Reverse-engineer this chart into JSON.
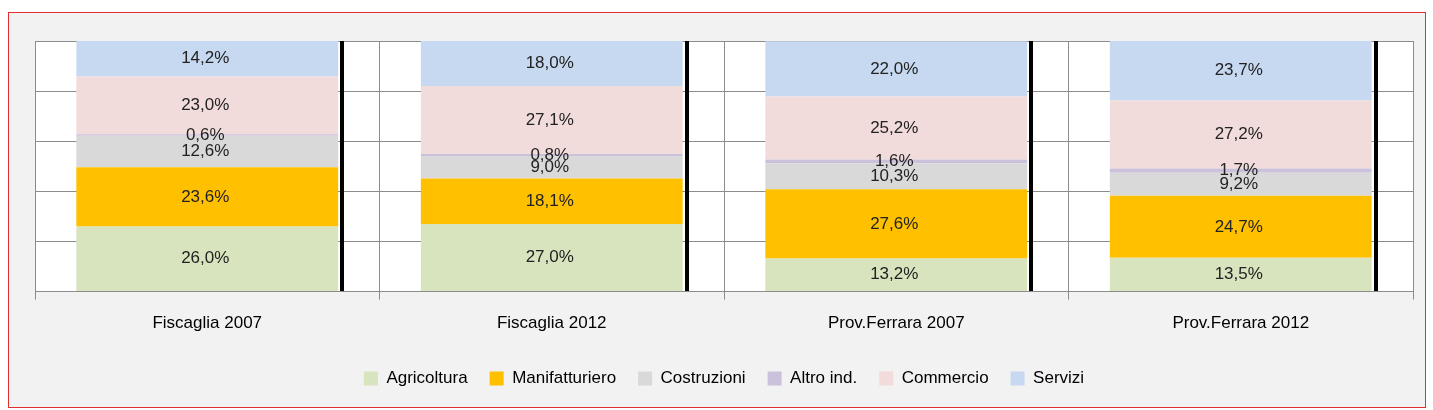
{
  "chart_data": {
    "type": "bar",
    "stacked": true,
    "categories": [
      "Fiscaglia 2007",
      "Fiscaglia 2012",
      "Prov.Ferrara 2007",
      "Prov.Ferrara 2012"
    ],
    "series": [
      {
        "name": "Agricoltura",
        "color": "#d7e4bd",
        "values": [
          26.0,
          27.0,
          13.2,
          13.5
        ],
        "value_labels": [
          "26,0%",
          "27,0%",
          "13,2%",
          "13,5%"
        ]
      },
      {
        "name": "Manifatturiero",
        "color": "#ffc000",
        "values": [
          23.6,
          18.1,
          27.6,
          24.7
        ],
        "value_labels": [
          "23,6%",
          "18,1%",
          "27,6%",
          "24,7%"
        ]
      },
      {
        "name": "Costruzioni",
        "color": "#d9d9d9",
        "values": [
          12.6,
          9.0,
          10.3,
          9.2
        ],
        "value_labels": [
          "12,6%",
          "9,0%",
          "10,3%",
          "9,2%"
        ]
      },
      {
        "name": "Altro ind.",
        "color": "#ccc1da",
        "values": [
          0.6,
          0.8,
          1.6,
          1.7
        ],
        "value_labels": [
          "0,6%",
          "0,8%",
          "1,6%",
          "1,7%"
        ]
      },
      {
        "name": "Commercio",
        "color": "#f2dcdb",
        "values": [
          23.0,
          27.1,
          25.2,
          27.2
        ],
        "value_labels": [
          "23,0%",
          "27,1%",
          "25,2%",
          "27,2%"
        ]
      },
      {
        "name": "Servizi",
        "color": "#c6d9f1",
        "values": [
          14.2,
          18.0,
          22.0,
          23.7
        ],
        "value_labels": [
          "14,2%",
          "18,0%",
          "22,0%",
          "23,7%"
        ]
      }
    ],
    "ylim": [
      0,
      100
    ],
    "yticks": [
      {
        "value": 0,
        "label": null
      },
      {
        "value": 20,
        "label": null
      },
      {
        "value": 40,
        "label": null
      },
      {
        "value": 60,
        "label": null
      },
      {
        "value": 80,
        "label": null
      },
      {
        "value": 100,
        "label": null
      }
    ],
    "tick_labels": "x",
    "grid": true,
    "legend": "bottom"
  }
}
